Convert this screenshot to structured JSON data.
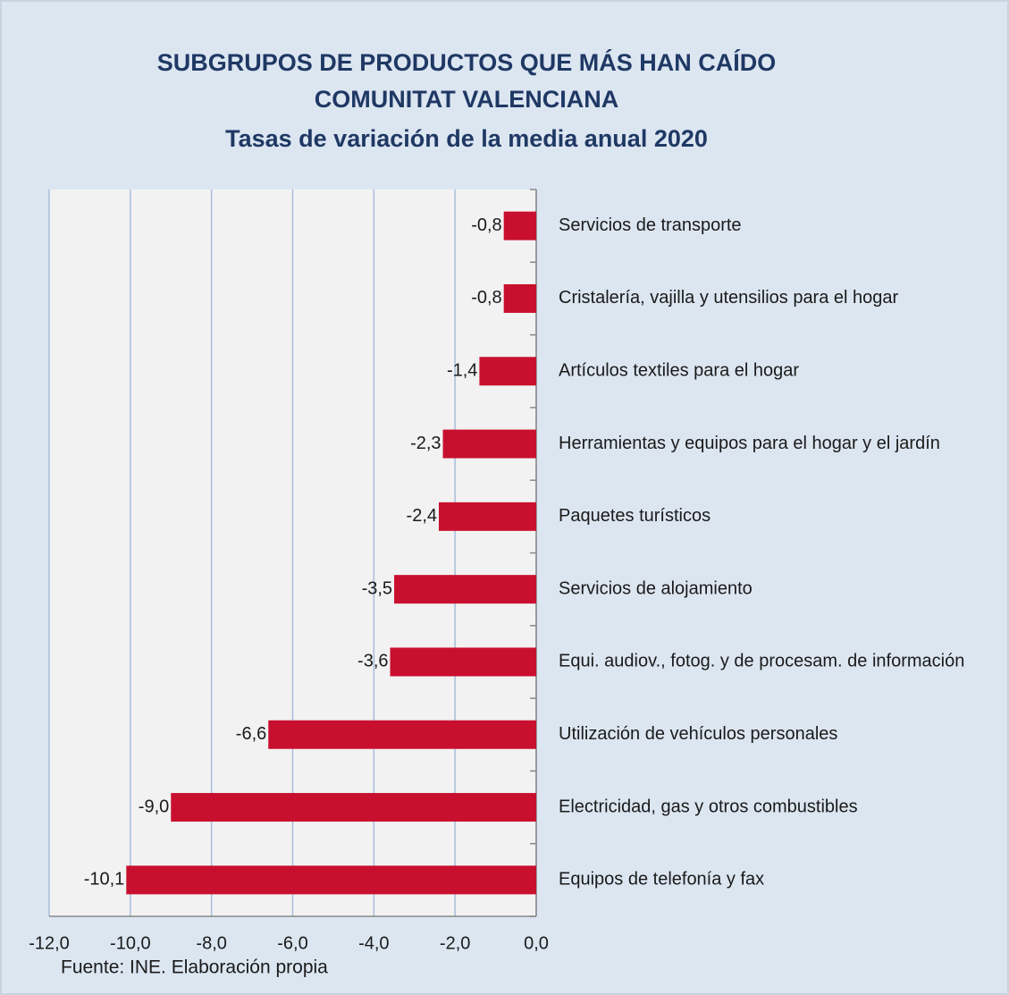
{
  "chart_data": {
    "type": "barh",
    "title": [
      "SUBGRUPOS DE PRODUCTOS QUE MÁS HAN CAÍDO",
      "COMUNITAT VALENCIANA"
    ],
    "subtitle": "Tasas de variación de la media anual 2020",
    "source": "Fuente: INE. Elaboración propia",
    "categories": [
      "Servicios de transporte",
      "Cristalería, vajilla y utensilios para el hogar",
      "Artículos textiles para el hogar",
      "Herramientas y equipos para el hogar y el jardín",
      "Paquetes turísticos",
      "Servicios de alojamiento",
      "Equi. audiov., fotog. y de procesam. de información",
      "Utilización de vehículos personales",
      "Electricidad, gas y otros combustibles",
      "Equipos de telefonía y fax"
    ],
    "values": [
      -0.8,
      -0.8,
      -1.4,
      -2.3,
      -2.4,
      -3.5,
      -3.6,
      -6.6,
      -9.0,
      -10.1
    ],
    "value_labels": [
      "-0,8",
      "-0,8",
      "-1,4",
      "-2,3",
      "-2,4",
      "-3,5",
      "-3,6",
      "-6,6",
      "-9,0",
      "-10,1"
    ],
    "color": "#c8102e",
    "xlim": [
      -12,
      0
    ],
    "xticks": [
      {
        "value": -12,
        "label": "-12,0"
      },
      {
        "value": -10,
        "label": "-10,0"
      },
      {
        "value": -8,
        "label": "-8,0"
      },
      {
        "value": -6,
        "label": "-6,0"
      },
      {
        "value": -4,
        "label": "-4,0"
      },
      {
        "value": -2,
        "label": "-2,0"
      },
      {
        "value": 0,
        "label": "0,0"
      }
    ],
    "grid": true
  }
}
